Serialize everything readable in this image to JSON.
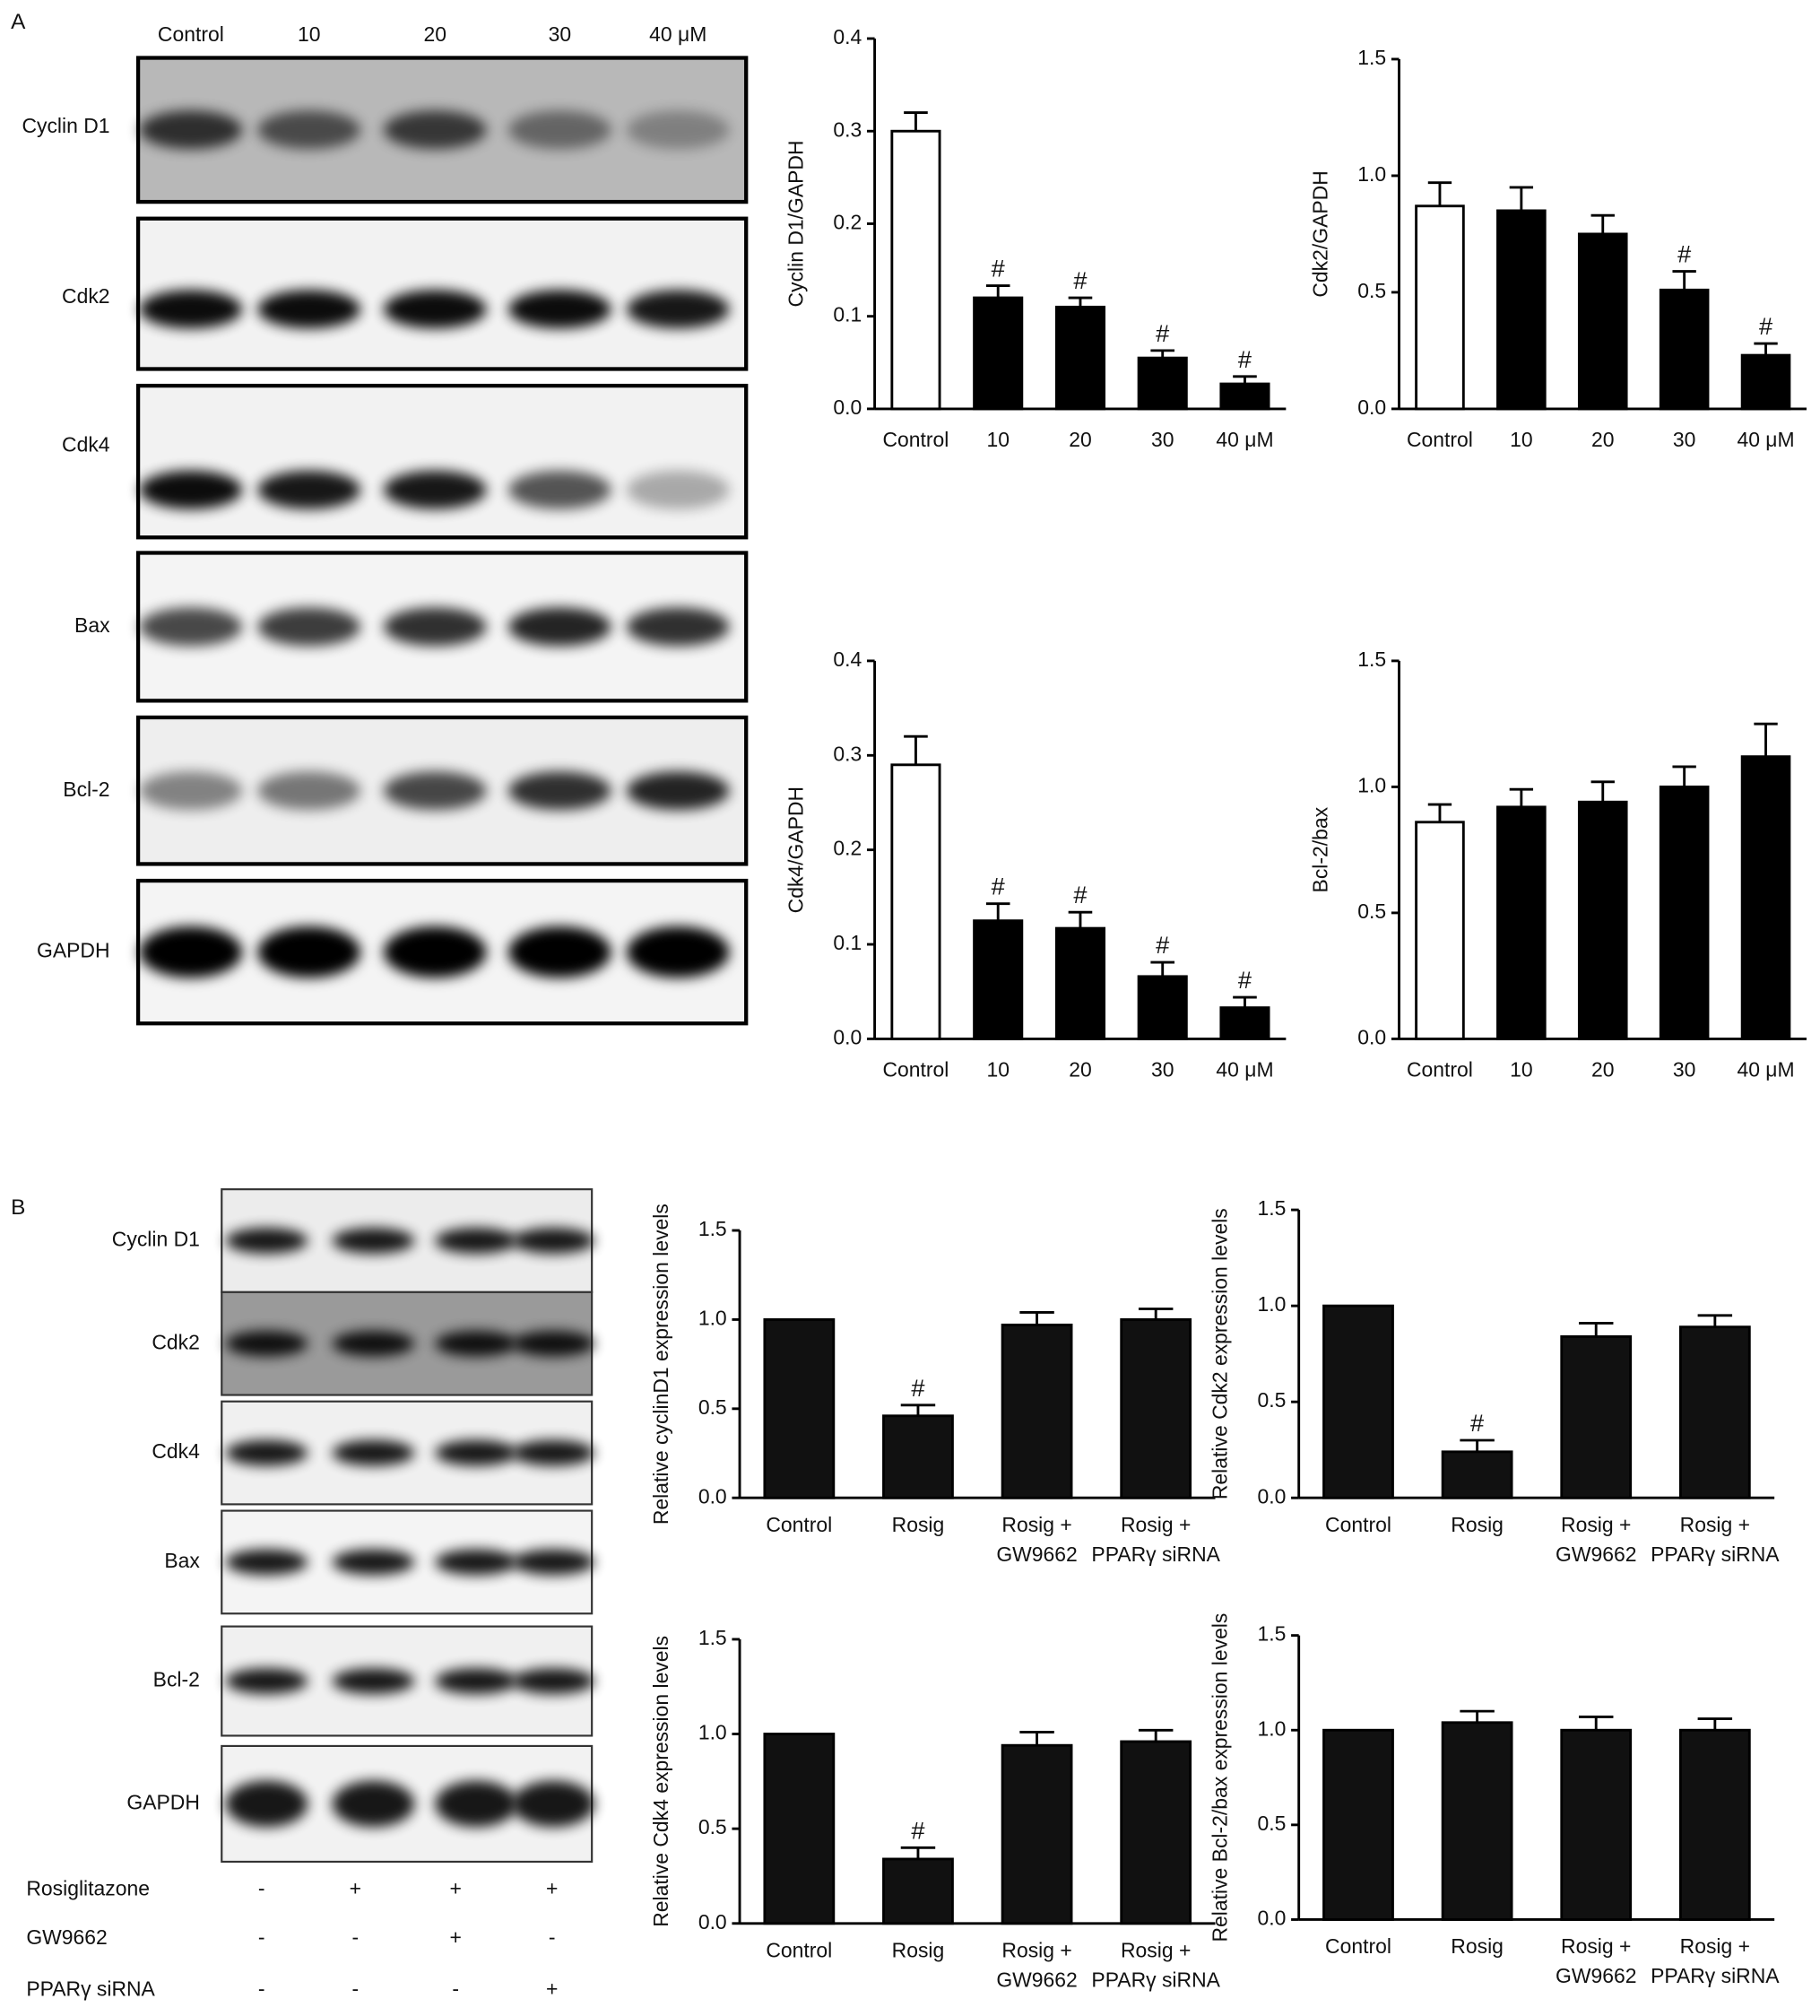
{
  "panel_labels": [
    "A",
    "B"
  ],
  "blots_a": {
    "lanes": [
      "Control",
      "10",
      "20",
      "30",
      "40 μM"
    ],
    "rows": [
      "Cyclin D1",
      "Cdk2",
      "Cdk4",
      "Bax",
      "Bcl-2",
      "GAPDH"
    ]
  },
  "blots_b": {
    "rows": [
      "Cyclin D1",
      "Cdk2",
      "Cdk4",
      "Bax",
      "Bcl-2",
      "GAPDH"
    ],
    "treatments": [
      {
        "name": "Rosiglitazone",
        "signs": [
          "-",
          "+",
          "+",
          "+"
        ]
      },
      {
        "name": "GW9662",
        "signs": [
          "-",
          "-",
          "+",
          "-"
        ]
      },
      {
        "name": "PPARγ siRNA",
        "signs": [
          "-",
          "-",
          "-",
          "+"
        ]
      }
    ]
  },
  "chart_data": [
    {
      "type": "bar",
      "y_label": "Cyclin D1/GAPDH",
      "categories": [
        "Control",
        "10",
        "20",
        "30",
        "40 μM"
      ],
      "values": [
        0.3,
        0.12,
        0.11,
        0.055,
        0.027
      ],
      "errors": [
        0.02,
        0.013,
        0.01,
        0.008,
        0.008
      ],
      "annotations": [
        null,
        "#",
        "#",
        "#",
        "#"
      ],
      "colors": [
        "#ffffff",
        "#000000",
        "#000000",
        "#000000",
        "#000000"
      ],
      "ylim": [
        0,
        0.4
      ],
      "yticks": [
        {
          "value": 0,
          "label": "0.0"
        },
        0.1,
        0.2,
        0.3,
        0.4
      ]
    },
    {
      "type": "bar",
      "y_label": "Cdk2/GAPDH",
      "categories": [
        "Control",
        "10",
        "20",
        "30",
        "40 μM"
      ],
      "values": [
        0.87,
        0.85,
        0.75,
        0.51,
        0.23
      ],
      "errors": [
        0.1,
        0.1,
        0.08,
        0.08,
        0.05
      ],
      "annotations": [
        null,
        null,
        null,
        "#",
        "#"
      ],
      "colors": [
        "#ffffff",
        "#000000",
        "#000000",
        "#000000",
        "#000000"
      ],
      "ylim": [
        0,
        1.5
      ],
      "yticks": [
        {
          "value": 0,
          "label": "0.0"
        },
        0.5,
        {
          "value": 1,
          "label": "1.0"
        },
        1.5
      ]
    },
    {
      "type": "bar",
      "y_label": "Cdk4/GAPDH",
      "categories": [
        "Control",
        "10",
        "20",
        "30",
        "40 μM"
      ],
      "values": [
        0.29,
        0.125,
        0.117,
        0.066,
        0.033
      ],
      "errors": [
        0.03,
        0.018,
        0.017,
        0.015,
        0.011
      ],
      "annotations": [
        null,
        "#",
        "#",
        "#",
        "#"
      ],
      "colors": [
        "#ffffff",
        "#000000",
        "#000000",
        "#000000",
        "#000000"
      ],
      "ylim": [
        0,
        0.4
      ],
      "yticks": [
        {
          "value": 0,
          "label": "0.0"
        },
        0.1,
        0.2,
        0.3,
        0.4
      ]
    },
    {
      "type": "bar",
      "y_label": "Bcl-2/bax",
      "categories": [
        "Control",
        "10",
        "20",
        "30",
        "40 μM"
      ],
      "values": [
        0.86,
        0.92,
        0.94,
        1.0,
        1.12
      ],
      "errors": [
        0.07,
        0.07,
        0.08,
        0.08,
        0.13
      ],
      "colors": [
        "#ffffff",
        "#000000",
        "#000000",
        "#000000",
        "#000000"
      ],
      "ylim": [
        0,
        1.5
      ],
      "yticks": [
        {
          "value": 0,
          "label": "0.0"
        },
        0.5,
        {
          "value": 1,
          "label": "1.0"
        },
        1.5
      ]
    },
    {
      "type": "bar",
      "y_label": "Relative cyclinD1 expression levels",
      "categories": [
        [
          "Control"
        ],
        [
          "Rosig"
        ],
        [
          "Rosig +",
          "GW9662"
        ],
        [
          "Rosig +",
          "PPARγ siRNA"
        ]
      ],
      "values": [
        1.0,
        0.46,
        0.97,
        1.0
      ],
      "errors": [
        null,
        0.06,
        0.07,
        0.06
      ],
      "annotations": [
        null,
        "#",
        null,
        null
      ],
      "color": "#111111",
      "ylim": [
        0,
        1.5
      ],
      "yticks": [
        {
          "value": 0,
          "label": "0.0"
        },
        0.5,
        {
          "value": 1,
          "label": "1.0"
        },
        1.5
      ]
    },
    {
      "type": "bar",
      "y_label": "Relative Cdk2 expression levels",
      "categories": [
        [
          "Control"
        ],
        [
          "Rosig"
        ],
        [
          "Rosig +",
          "GW9662"
        ],
        [
          "Rosig +",
          "PPARγ siRNA"
        ]
      ],
      "values": [
        1.0,
        0.24,
        0.84,
        0.89
      ],
      "errors": [
        null,
        0.06,
        0.07,
        0.06
      ],
      "annotations": [
        null,
        "#",
        null,
        null
      ],
      "color": "#111111",
      "ylim": [
        0,
        1.5
      ],
      "yticks": [
        {
          "value": 0,
          "label": "0.0"
        },
        0.5,
        {
          "value": 1,
          "label": "1.0"
        },
        1.5
      ]
    },
    {
      "type": "bar",
      "y_label": "Relative Cdk4 expression levels",
      "categories": [
        [
          "Control"
        ],
        [
          "Rosig"
        ],
        [
          "Rosig +",
          "GW9662"
        ],
        [
          "Rosig +",
          "PPARγ siRNA"
        ]
      ],
      "values": [
        1.0,
        0.34,
        0.94,
        0.96
      ],
      "errors": [
        null,
        0.06,
        0.07,
        0.06
      ],
      "annotations": [
        null,
        "#",
        null,
        null
      ],
      "color": "#111111",
      "ylim": [
        0,
        1.5
      ],
      "yticks": [
        {
          "value": 0,
          "label": "0.0"
        },
        0.5,
        {
          "value": 1,
          "label": "1.0"
        },
        1.5
      ]
    },
    {
      "type": "bar",
      "y_label": "Relative Bcl-2/bax expression levels",
      "categories": [
        [
          "Control"
        ],
        [
          "Rosig"
        ],
        [
          "Rosig +",
          "GW9662"
        ],
        [
          "Rosig +",
          "PPARγ siRNA"
        ]
      ],
      "values": [
        1.0,
        1.04,
        1.0,
        1.0
      ],
      "errors": [
        null,
        0.06,
        0.07,
        0.06
      ],
      "color": "#111111",
      "ylim": [
        0,
        1.5
      ],
      "yticks": [
        {
          "value": 0,
          "label": "0.0"
        },
        0.5,
        {
          "value": 1,
          "label": "1.0"
        },
        1.5
      ]
    }
  ]
}
